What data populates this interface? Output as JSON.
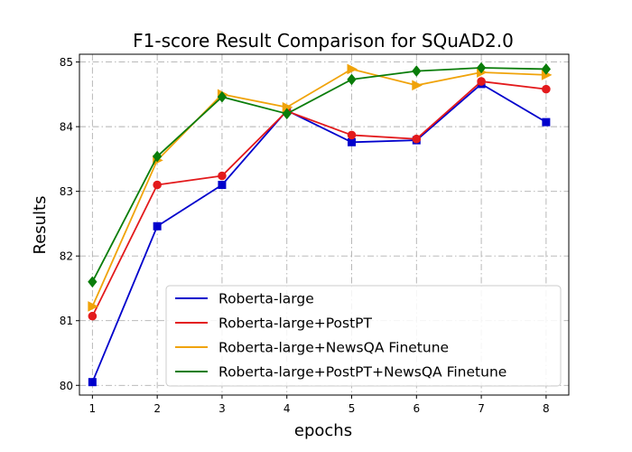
{
  "chart_data": {
    "type": "line",
    "title": "F1-score Result Comparison for SQuAD2.0",
    "xlabel": "epochs",
    "ylabel": "Results",
    "x": [
      1,
      2,
      3,
      4,
      5,
      6,
      7,
      8
    ],
    "xlim": [
      0.8,
      8.35
    ],
    "ylim": [
      79.85,
      85.12
    ],
    "xticks": [
      "1",
      "2",
      "3",
      "4",
      "5",
      "6",
      "7",
      "8"
    ],
    "yticks": [
      "80",
      "81",
      "82",
      "83",
      "84",
      "85"
    ],
    "grid": true,
    "legend_position": "lower-right",
    "series": [
      {
        "name": "Roberta-large",
        "color": "#0000cc",
        "marker": "square",
        "values": [
          80.05,
          82.46,
          83.1,
          84.25,
          83.76,
          83.79,
          84.66,
          84.07
        ]
      },
      {
        "name": "Roberta-large+PostPT",
        "color": "#e31a1c",
        "marker": "circle",
        "values": [
          81.07,
          83.1,
          83.24,
          84.24,
          83.87,
          83.81,
          84.7,
          84.58
        ]
      },
      {
        "name": "Roberta-large+NewsQA Finetune",
        "color": "#f0a30a",
        "marker": "triangle-right",
        "values": [
          81.22,
          83.48,
          84.5,
          84.3,
          84.89,
          84.64,
          84.84,
          84.8
        ]
      },
      {
        "name": "Roberta-large+PostPT+NewsQA Finetune",
        "color": "#0a7d0a",
        "marker": "diamond",
        "values": [
          81.6,
          83.54,
          84.46,
          84.2,
          84.73,
          84.86,
          84.91,
          84.89
        ]
      }
    ]
  }
}
